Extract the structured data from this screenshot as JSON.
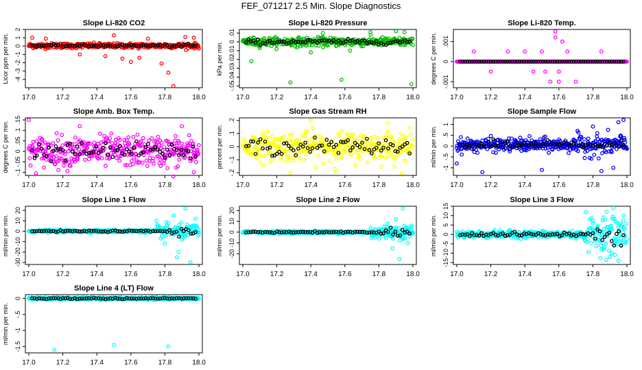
{
  "title": "FEF_071217  2.5 Min. Slope Diagnostics",
  "chart_data": [
    {
      "type": "scatter",
      "title": "Slope Li-820 CO2",
      "ylabel": "Licor ppm per min.",
      "xlim": [
        16.98,
        18.02
      ],
      "ylim": [
        -5,
        2
      ],
      "xticks": [
        "17.0",
        "17.2",
        "17.4",
        "17.6",
        "17.8",
        "18.0"
      ],
      "yticks": [
        -4,
        -3,
        -2,
        -1,
        0,
        1,
        2
      ],
      "color": "#ff0000",
      "center": 0.05,
      "spread": 0.25,
      "outliers": [
        [
          17.02,
          1.0
        ],
        [
          17.1,
          0.9
        ],
        [
          17.3,
          -1.0
        ],
        [
          17.45,
          -1.2
        ],
        [
          17.55,
          -1.5
        ],
        [
          17.6,
          -1.9
        ],
        [
          17.65,
          -1.4
        ],
        [
          17.7,
          0.9
        ],
        [
          17.78,
          -2.1
        ],
        [
          17.82,
          -3.2
        ],
        [
          17.85,
          -4.8
        ],
        [
          17.92,
          1.1
        ],
        [
          17.97,
          1.0
        ],
        [
          17.5,
          1.3
        ]
      ]
    },
    {
      "type": "scatter",
      "title": "Slope Li-820 Pressure",
      "ylabel": "kPa per min.",
      "xlim": [
        16.98,
        18.02
      ],
      "ylim": [
        -0.052,
        0.014
      ],
      "xticks": [
        "17.0",
        "17.2",
        "17.4",
        "17.6",
        "17.8",
        "18.0"
      ],
      "yticks": [
        -0.05,
        -0.04,
        -0.03,
        -0.02,
        -0.01,
        0,
        0.01
      ],
      "color": "#00bb00",
      "center": 0.0,
      "spread": 0.004,
      "outliers": [
        [
          17.05,
          -0.022
        ],
        [
          17.28,
          -0.046
        ],
        [
          17.4,
          -0.012
        ],
        [
          17.58,
          -0.043
        ],
        [
          17.63,
          -0.01
        ],
        [
          17.99,
          -0.048
        ],
        [
          17.9,
          0.012
        ],
        [
          17.75,
          0.011
        ],
        [
          17.47,
          0.01
        ],
        [
          17.95,
          0.011
        ]
      ]
    },
    {
      "type": "scatter",
      "title": "Slope Li-820 Temp.",
      "ylabel": "degrees C per min.",
      "xlim": [
        16.98,
        18.02
      ],
      "ylim": [
        -0.0013,
        0.0016
      ],
      "xticks": [
        "17.0",
        "17.2",
        "17.4",
        "17.6",
        "17.8",
        "18.0"
      ],
      "yticks": [
        -0.001,
        0,
        0.001
      ],
      "color": "#ff00ff",
      "center": 0,
      "spread": 0,
      "outliers": [
        [
          17.1,
          0.0005
        ],
        [
          17.2,
          -0.0005
        ],
        [
          17.3,
          0.0005
        ],
        [
          17.45,
          -0.0005
        ],
        [
          17.5,
          0.0005
        ],
        [
          17.55,
          -0.001
        ],
        [
          17.58,
          0.0015
        ],
        [
          17.6,
          -0.0005
        ],
        [
          17.62,
          0.001
        ],
        [
          17.65,
          0.0005
        ],
        [
          17.7,
          -0.001
        ],
        [
          17.58,
          0.0012
        ],
        [
          17.85,
          0.0005
        ],
        [
          17.6,
          -0.001
        ],
        [
          17.4,
          0.0005
        ],
        [
          17.52,
          -0.0005
        ]
      ]
    },
    {
      "type": "scatter",
      "title": "Slope Amb. Box Temp.",
      "ylabel": "degrees C per min.",
      "xlim": [
        16.98,
        18.02
      ],
      "ylim": [
        -0.115,
        0.16
      ],
      "xticks": [
        "17.0",
        "17.2",
        "17.4",
        "17.6",
        "17.8",
        "18.0"
      ],
      "yticks": [
        -0.1,
        -0.05,
        0,
        0.05,
        0.1,
        0.15
      ],
      "color": "#ff00ff",
      "center": 0.0,
      "spread": 0.06,
      "outliers": [
        [
          17.0,
          0.15
        ],
        [
          17.3,
          0.12
        ],
        [
          17.85,
          -0.12
        ],
        [
          17.9,
          0.12
        ],
        [
          17.97,
          -0.1
        ]
      ]
    },
    {
      "type": "scatter",
      "title": "Slope Gas Stream RH",
      "ylabel": "percent per min.",
      "xlim": [
        16.98,
        18.02
      ],
      "ylim": [
        -0.22,
        0.22
      ],
      "xticks": [
        "17.0",
        "17.2",
        "17.4",
        "17.6",
        "17.8",
        "18.0"
      ],
      "yticks": [
        -0.2,
        -0.1,
        0,
        0.1,
        0.2
      ],
      "color": "#ffff00",
      "center": 0.0,
      "spread": 0.09,
      "outliers": [
        [
          17.28,
          -0.2
        ],
        [
          17.4,
          0.2
        ],
        [
          17.55,
          -0.19
        ],
        [
          17.85,
          0.18
        ]
      ]
    },
    {
      "type": "scatter",
      "title": "Slope Sample Flow",
      "ylabel": "ml/min per min.",
      "xlim": [
        16.98,
        18.02
      ],
      "ylim": [
        -1.35,
        1.3
      ],
      "xticks": [
        "17.0",
        "17.2",
        "17.4",
        "17.6",
        "17.8",
        "18.0"
      ],
      "yticks": [
        -1,
        -0.5,
        0,
        0.5,
        1
      ],
      "color": "#0000ff",
      "center": 0.05,
      "spread": 0.25,
      "outliers": [
        [
          17.0,
          -0.8
        ],
        [
          17.15,
          -1.2
        ],
        [
          17.5,
          -1.1
        ],
        [
          17.85,
          -1.15
        ],
        [
          17.98,
          1.2
        ],
        [
          17.92,
          -1.0
        ],
        [
          17.8,
          0.9
        ],
        [
          17.95,
          1.1
        ]
      ]
    },
    {
      "type": "scatter",
      "title": "Slope Line 1 Flow",
      "ylabel": "ml/min per min.",
      "xlim": [
        16.98,
        18.02
      ],
      "ylim": [
        -32,
        24
      ],
      "xticks": [
        "17.0",
        "17.2",
        "17.4",
        "17.6",
        "17.8",
        "18.0"
      ],
      "yticks": [
        -30,
        -20,
        -10,
        0,
        10,
        20
      ],
      "color": "#00ffff",
      "center": 0,
      "spread": 1,
      "outliers": [
        [
          17.75,
          10
        ],
        [
          17.8,
          -12
        ],
        [
          17.85,
          15
        ],
        [
          17.88,
          -20
        ],
        [
          17.92,
          22
        ],
        [
          17.95,
          -30
        ],
        [
          17.98,
          12
        ],
        [
          17.9,
          -8
        ],
        [
          17.82,
          8
        ],
        [
          17.87,
          -25
        ]
      ]
    },
    {
      "type": "scatter",
      "title": "Slope Line 2 Flow",
      "ylabel": "ml/min per min.",
      "xlim": [
        16.98,
        18.02
      ],
      "ylim": [
        -30,
        24
      ],
      "xticks": [
        "17.0",
        "17.2",
        "17.4",
        "17.6",
        "17.8",
        "18.0"
      ],
      "yticks": [
        -20,
        -10,
        0,
        10,
        20
      ],
      "color": "#00ffff",
      "center": 0,
      "spread": 1,
      "outliers": [
        [
          17.8,
          -6
        ],
        [
          17.85,
          8
        ],
        [
          17.88,
          -15
        ],
        [
          17.9,
          12
        ],
        [
          17.92,
          -25
        ],
        [
          17.94,
          22
        ],
        [
          17.97,
          -10
        ],
        [
          17.99,
          6
        ]
      ]
    },
    {
      "type": "scatter",
      "title": "Slope Line 3 Flow",
      "ylabel": "ml/min per min.",
      "xlim": [
        16.98,
        18.02
      ],
      "ylim": [
        -16,
        15
      ],
      "xticks": [
        "17.0",
        "17.2",
        "17.4",
        "17.6",
        "17.8",
        "18.0"
      ],
      "yticks": [
        -15,
        -10,
        -5,
        0,
        5,
        10,
        15
      ],
      "color": "#00ffff",
      "center": 0,
      "spread": 1.5,
      "outliers": [
        [
          17.8,
          6
        ],
        [
          17.85,
          -8
        ],
        [
          17.88,
          12
        ],
        [
          17.9,
          -12
        ],
        [
          17.92,
          14
        ],
        [
          17.95,
          -14
        ],
        [
          17.98,
          10
        ],
        [
          17.93,
          -5
        ],
        [
          17.86,
          9
        ]
      ]
    },
    {
      "type": "scatter",
      "title": "Slope Line 4 (LT) Flow",
      "ylabel": "ml/min per min.",
      "xlim": [
        16.98,
        18.02
      ],
      "ylim": [
        -1.7,
        0.12
      ],
      "xticks": [
        "17.0",
        "17.2",
        "17.4",
        "17.6",
        "17.8",
        "18.0"
      ],
      "yticks": [
        -1.5,
        -1,
        -0.5,
        0
      ],
      "color": "#00ffff",
      "center": 0,
      "spread": 0.03,
      "outliers": [
        [
          17.15,
          -1.6
        ],
        [
          17.5,
          -1.45
        ],
        [
          17.82,
          -1.5
        ]
      ]
    }
  ]
}
